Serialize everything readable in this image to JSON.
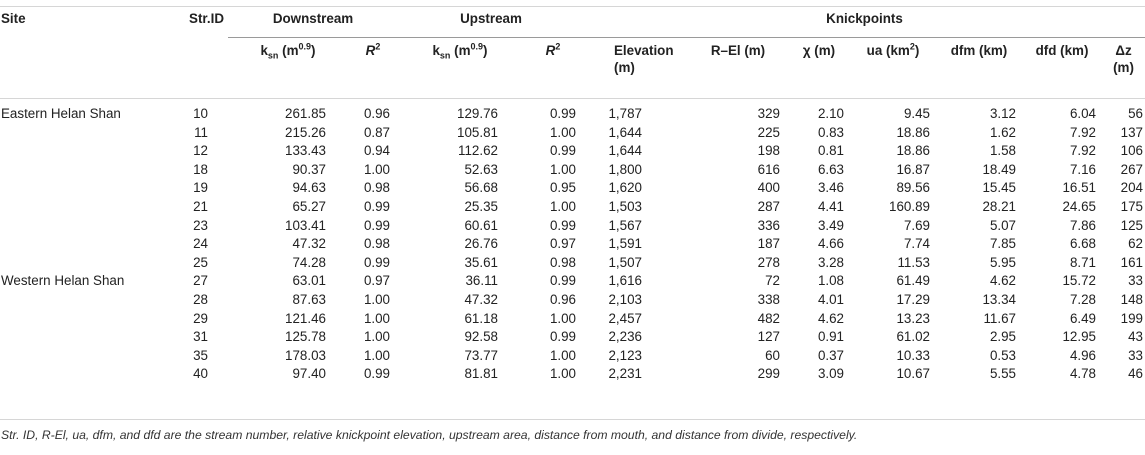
{
  "headers": {
    "site": "Site",
    "str_id": "Str.ID",
    "downstream": "Downstream",
    "upstream": "Upstream",
    "knickpoints": "Knickpoints",
    "ksn_base": "k",
    "ksn_sub": "sn",
    "ksn_unit_open": " (m",
    "ksn_unit_exp": "0.9",
    "ksn_unit_close": ")",
    "r2_base": "R",
    "r2_exp": "2",
    "elevation": "Elevation",
    "elevation_unit": "(m)",
    "r_el": "R–El (m)",
    "chi": "χ (m)",
    "ua_base": "ua (km",
    "ua_exp": "2",
    "ua_close": ")",
    "dfm": "dfm (km)",
    "dfd": "dfd (km)",
    "dz": "Δz",
    "dz_unit": "(m)"
  },
  "rows": [
    {
      "site": "Eastern Helan Shan",
      "id": "10",
      "d_ksn": "261.85",
      "d_r2": "0.96",
      "u_ksn": "129.76",
      "u_r2": "0.99",
      "elev": "1,787",
      "rel": "329",
      "chi": "2.10",
      "ua": "9.45",
      "dfm": "3.12",
      "dfd": "6.04",
      "dz": "56"
    },
    {
      "site": "",
      "id": "11",
      "d_ksn": "215.26",
      "d_r2": "0.87",
      "u_ksn": "105.81",
      "u_r2": "1.00",
      "elev": "1,644",
      "rel": "225",
      "chi": "0.83",
      "ua": "18.86",
      "dfm": "1.62",
      "dfd": "7.92",
      "dz": "137"
    },
    {
      "site": "",
      "id": "12",
      "d_ksn": "133.43",
      "d_r2": "0.94",
      "u_ksn": "112.62",
      "u_r2": "0.99",
      "elev": "1,644",
      "rel": "198",
      "chi": "0.81",
      "ua": "18.86",
      "dfm": "1.58",
      "dfd": "7.92",
      "dz": "106"
    },
    {
      "site": "",
      "id": "18",
      "d_ksn": "90.37",
      "d_r2": "1.00",
      "u_ksn": "52.63",
      "u_r2": "1.00",
      "elev": "1,800",
      "rel": "616",
      "chi": "6.63",
      "ua": "16.87",
      "dfm": "18.49",
      "dfd": "7.16",
      "dz": "267"
    },
    {
      "site": "",
      "id": "19",
      "d_ksn": "94.63",
      "d_r2": "0.98",
      "u_ksn": "56.68",
      "u_r2": "0.95",
      "elev": "1,620",
      "rel": "400",
      "chi": "3.46",
      "ua": "89.56",
      "dfm": "15.45",
      "dfd": "16.51",
      "dz": "204"
    },
    {
      "site": "",
      "id": "21",
      "d_ksn": "65.27",
      "d_r2": "0.99",
      "u_ksn": "25.35",
      "u_r2": "1.00",
      "elev": "1,503",
      "rel": "287",
      "chi": "4.41",
      "ua": "160.89",
      "dfm": "28.21",
      "dfd": "24.65",
      "dz": "175"
    },
    {
      "site": "",
      "id": "23",
      "d_ksn": "103.41",
      "d_r2": "0.99",
      "u_ksn": "60.61",
      "u_r2": "0.99",
      "elev": "1,567",
      "rel": "336",
      "chi": "3.49",
      "ua": "7.69",
      "dfm": "5.07",
      "dfd": "7.86",
      "dz": "125"
    },
    {
      "site": "",
      "id": "24",
      "d_ksn": "47.32",
      "d_r2": "0.98",
      "u_ksn": "26.76",
      "u_r2": "0.97",
      "elev": "1,591",
      "rel": "187",
      "chi": "4.66",
      "ua": "7.74",
      "dfm": "7.85",
      "dfd": "6.68",
      "dz": "62"
    },
    {
      "site": "",
      "id": "25",
      "d_ksn": "74.28",
      "d_r2": "0.99",
      "u_ksn": "35.61",
      "u_r2": "0.98",
      "elev": "1,507",
      "rel": "278",
      "chi": "3.28",
      "ua": "11.53",
      "dfm": "5.95",
      "dfd": "8.71",
      "dz": "161"
    },
    {
      "site": "Western Helan Shan",
      "id": "27",
      "d_ksn": "63.01",
      "d_r2": "0.97",
      "u_ksn": "36.11",
      "u_r2": "0.99",
      "elev": "1,616",
      "rel": "72",
      "chi": "1.08",
      "ua": "61.49",
      "dfm": "4.62",
      "dfd": "15.72",
      "dz": "33"
    },
    {
      "site": "",
      "id": "28",
      "d_ksn": "87.63",
      "d_r2": "1.00",
      "u_ksn": "47.32",
      "u_r2": "0.96",
      "elev": "2,103",
      "rel": "338",
      "chi": "4.01",
      "ua": "17.29",
      "dfm": "13.34",
      "dfd": "7.28",
      "dz": "148"
    },
    {
      "site": "",
      "id": "29",
      "d_ksn": "121.46",
      "d_r2": "1.00",
      "u_ksn": "61.18",
      "u_r2": "1.00",
      "elev": "2,457",
      "rel": "482",
      "chi": "4.62",
      "ua": "13.23",
      "dfm": "11.67",
      "dfd": "6.49",
      "dz": "199"
    },
    {
      "site": "",
      "id": "31",
      "d_ksn": "125.78",
      "d_r2": "1.00",
      "u_ksn": "92.58",
      "u_r2": "0.99",
      "elev": "2,236",
      "rel": "127",
      "chi": "0.91",
      "ua": "61.02",
      "dfm": "2.95",
      "dfd": "12.95",
      "dz": "43"
    },
    {
      "site": "",
      "id": "35",
      "d_ksn": "178.03",
      "d_r2": "1.00",
      "u_ksn": "73.77",
      "u_r2": "1.00",
      "elev": "2,123",
      "rel": "60",
      "chi": "0.37",
      "ua": "10.33",
      "dfm": "0.53",
      "dfd": "4.96",
      "dz": "33"
    },
    {
      "site": "",
      "id": "40",
      "d_ksn": "97.40",
      "d_r2": "0.99",
      "u_ksn": "81.81",
      "u_r2": "1.00",
      "elev": "2,231",
      "rel": "299",
      "chi": "3.09",
      "ua": "10.67",
      "dfm": "5.55",
      "dfd": "4.78",
      "dz": "46"
    }
  ],
  "footnote": "Str. ID, R-El, ua, dfm, and dfd are the stream number, relative knickpoint elevation, upstream area, distance from mouth, and distance from divide, respectively."
}
